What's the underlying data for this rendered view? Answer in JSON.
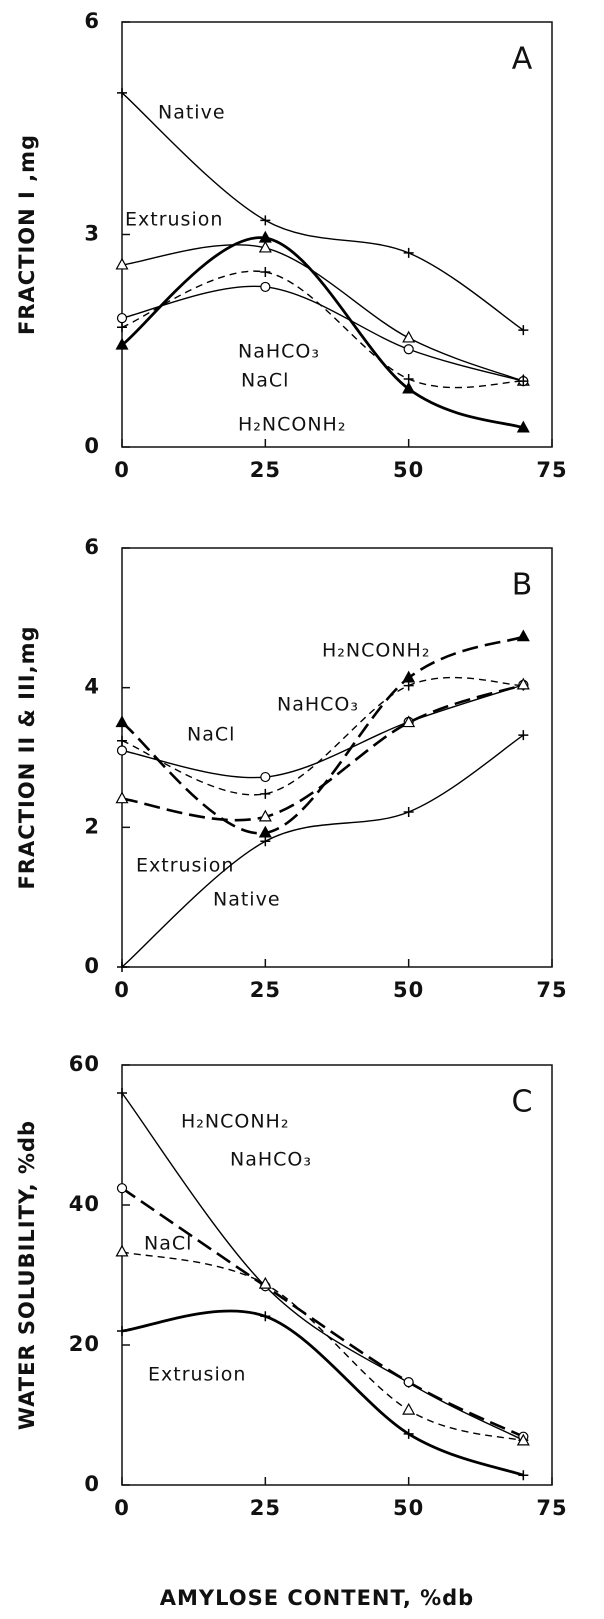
{
  "chart_data": [
    {
      "type": "line",
      "label": "A",
      "y_label": "FRACTION I ,mg",
      "x": [
        0,
        25,
        50,
        70
      ],
      "xlim": [
        0,
        75
      ],
      "xticks": [
        0,
        25,
        50,
        75
      ],
      "ylim": [
        0,
        6
      ],
      "yticks": [
        0,
        3,
        6
      ],
      "series": [
        {
          "name": "Native",
          "color": "#000000",
          "marker": "plus",
          "line_style": "solid",
          "values": [
            5.0,
            3.2,
            2.74,
            1.65
          ]
        },
        {
          "name": "Extrusion",
          "color": "#000000",
          "marker": "triangle-open",
          "line_style": "solid",
          "values": [
            2.57,
            2.81,
            1.54,
            0.93
          ]
        },
        {
          "name": "NaHCO₃",
          "color": "#000000",
          "marker": "circle-open",
          "line_style": "solid",
          "values": [
            1.82,
            2.26,
            1.38,
            0.93
          ]
        },
        {
          "name": "NaCl",
          "color": "#000000",
          "marker": "plus",
          "line_style": "dashed",
          "values": [
            1.69,
            2.47,
            0.96,
            0.93
          ]
        },
        {
          "name": "H₂NCONH₂",
          "color": "#000000",
          "marker": "triangle-filled",
          "line_style": "bold",
          "values": [
            1.44,
            2.95,
            0.82,
            0.27
          ]
        }
      ]
    },
    {
      "type": "line",
      "label": "B",
      "y_label": "FRACTION II & III,mg",
      "x": [
        0,
        25,
        50,
        70
      ],
      "xlim": [
        0,
        75
      ],
      "xticks": [
        0,
        25,
        50,
        75
      ],
      "ylim": [
        0,
        6
      ],
      "yticks": [
        0,
        2,
        4,
        6
      ],
      "series": [
        {
          "name": "H₂NCONH₂",
          "color": "#000000",
          "marker": "triangle-filled",
          "line_style": "bold-dashed",
          "values": [
            3.5,
            1.92,
            4.14,
            4.73
          ]
        },
        {
          "name": "NaHCO₃",
          "color": "#000000",
          "marker": "circle-open",
          "line_style": "solid",
          "values": [
            3.1,
            2.72,
            3.51,
            4.04
          ]
        },
        {
          "name": "NaCl",
          "color": "#000000",
          "marker": "plus",
          "line_style": "dashed",
          "values": [
            3.24,
            2.48,
            4.03,
            4.03
          ]
        },
        {
          "name": "Extrusion",
          "color": "#000000",
          "marker": "triangle-open",
          "line_style": "bold-dashed",
          "values": [
            2.41,
            2.15,
            3.5,
            4.04
          ]
        },
        {
          "name": "Native",
          "color": "#000000",
          "marker": "plus",
          "line_style": "solid",
          "values": [
            0,
            1.8,
            2.22,
            3.32
          ]
        }
      ]
    },
    {
      "type": "line",
      "label": "C",
      "y_label": "WATER SOLUBILITY, %db",
      "x_label": "AMYLOSE CONTENT, %db",
      "x": [
        0,
        25,
        50,
        70
      ],
      "xlim": [
        0,
        75
      ],
      "xticks": [
        0,
        25,
        50,
        75
      ],
      "ylim": [
        0,
        60
      ],
      "yticks": [
        0,
        20,
        40,
        60
      ],
      "series": [
        {
          "name": "H₂NCONH₂",
          "color": "#000000",
          "marker": "plus",
          "line_style": "solid",
          "values": [
            56,
            28.4,
            14.6,
            6.4
          ]
        },
        {
          "name": "NaHCO₃",
          "color": "#000000",
          "marker": "circle-open",
          "line_style": "bold-dashed",
          "values": [
            42.4,
            28.4,
            14.7,
            6.9
          ]
        },
        {
          "name": "NaCl",
          "color": "#000000",
          "marker": "triangle-open",
          "line_style": "dashed",
          "values": [
            33.3,
            28.7,
            10.7,
            6.3
          ]
        },
        {
          "name": "Extrusion",
          "color": "#000000",
          "marker": "plus",
          "line_style": "bold",
          "values": [
            22,
            24.1,
            7.3,
            1.4
          ]
        }
      ]
    }
  ]
}
